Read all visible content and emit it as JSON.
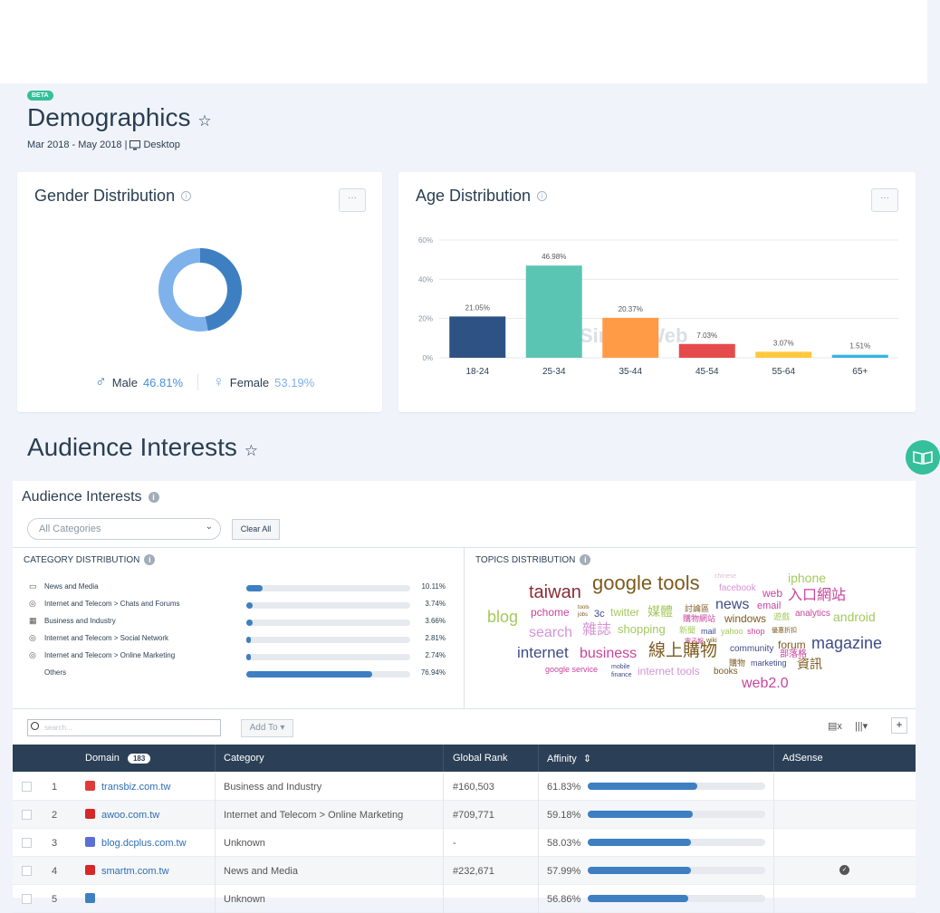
{
  "header": {
    "badge": "BETA",
    "title": "Demographics",
    "date_range": "Mar 2018 - May 2018 |",
    "device": "Desktop"
  },
  "gender": {
    "title": "Gender Distribution",
    "more": "···",
    "male_label": "Male",
    "male_value": "46.81%",
    "female_label": "Female",
    "female_value": "53.19%",
    "colors": {
      "male": "#3e7fc1",
      "female": "#7fb2ea"
    }
  },
  "age": {
    "title": "Age Distribution",
    "more": "···",
    "watermark": "SimilarWeb"
  },
  "chart_data": {
    "type": "bar",
    "categories": [
      "18-24",
      "25-34",
      "35-44",
      "45-54",
      "55-64",
      "65+"
    ],
    "values": [
      21.05,
      46.98,
      20.37,
      7.03,
      3.07,
      1.51
    ],
    "value_labels": [
      "21.05%",
      "46.98%",
      "20.37%",
      "7.03%",
      "3.07%",
      "1.51%"
    ],
    "colors": [
      "#2f5285",
      "#5bc5b4",
      "#ff9b47",
      "#e64b4b",
      "#ffc83d",
      "#35b5e5"
    ],
    "yticks": [
      "0%",
      "20%",
      "40%",
      "60%"
    ],
    "ylim": [
      0,
      60
    ],
    "title": "",
    "xlabel": "",
    "ylabel": ""
  },
  "interests": {
    "section_title": "Audience Interests",
    "panel_title": "Audience Interests",
    "category_select": "All Categories",
    "clear_all": "Clear All",
    "category_dist_title": "CATEGORY DISTRIBUTION",
    "topics_dist_title": "TOPICS DISTRIBUTION",
    "categories": [
      {
        "icon": "news-icon",
        "glyph": "▭",
        "label": "News and Media",
        "value": "10.11%",
        "pct": 10.11
      },
      {
        "icon": "compass-icon",
        "glyph": "◎",
        "label": "Internet and Telecom > Chats and Forums",
        "value": "3.74%",
        "pct": 3.74
      },
      {
        "icon": "building-icon",
        "glyph": "▦",
        "label": "Business and Industry",
        "value": "3.66%",
        "pct": 3.66
      },
      {
        "icon": "compass-icon",
        "glyph": "◎",
        "label": "Internet and Telecom > Social Network",
        "value": "2.81%",
        "pct": 2.81
      },
      {
        "icon": "compass-icon",
        "glyph": "◎",
        "label": "Internet and Telecom > Online Marketing",
        "value": "2.74%",
        "pct": 2.74
      },
      {
        "icon": "",
        "glyph": "",
        "label": "Others",
        "value": "76.94%",
        "pct": 76.94
      }
    ],
    "topics": [
      {
        "t": "taiwan",
        "c": "#8b2a35"
      },
      {
        "t": "google tools",
        "c": "#7d5a1e"
      },
      {
        "t": "chinese",
        "c": "#e0c0d8"
      },
      {
        "t": "facebook",
        "c": "#d493d6"
      },
      {
        "t": "iphone",
        "c": "#a3c95c"
      },
      {
        "t": "web",
        "c": "#c9449c"
      },
      {
        "t": "入口網站",
        "c": "#c9449c"
      },
      {
        "t": "news",
        "c": "#3e4b87"
      },
      {
        "t": "email",
        "c": "#c9449c"
      },
      {
        "t": "blog",
        "c": "#a3c95c"
      },
      {
        "t": "pchome",
        "c": "#c9449c"
      },
      {
        "t": "tools",
        "c": "#7d5a1e"
      },
      {
        "t": "jobs",
        "c": "#7d5a1e"
      },
      {
        "t": "3c",
        "c": "#3e4b87"
      },
      {
        "t": "twitter",
        "c": "#a3c95c"
      },
      {
        "t": "媒體",
        "c": "#a3c95c"
      },
      {
        "t": "討論區",
        "c": "#7d5a1e"
      },
      {
        "t": "購物網站",
        "c": "#c9449c"
      },
      {
        "t": "windows",
        "c": "#7d5a1e"
      },
      {
        "t": "遊戲",
        "c": "#a3c95c"
      },
      {
        "t": "analytics",
        "c": "#c9449c"
      },
      {
        "t": "android",
        "c": "#a3c95c"
      },
      {
        "t": "search",
        "c": "#d493d6"
      },
      {
        "t": "雜誌",
        "c": "#d493d6"
      },
      {
        "t": "shopping",
        "c": "#a3c95c"
      },
      {
        "t": "新聞",
        "c": "#a3c95c"
      },
      {
        "t": "mail",
        "c": "#3e4b87"
      },
      {
        "t": "yahoo",
        "c": "#a3c95c"
      },
      {
        "t": "shop",
        "c": "#c9449c"
      },
      {
        "t": "優惠折扣",
        "c": "#7d5a1e"
      },
      {
        "t": "電子報",
        "c": "#c9449c"
      },
      {
        "t": "wiki",
        "c": "#7d5a1e"
      },
      {
        "t": "forum",
        "c": "#7d5a1e"
      },
      {
        "t": "magazine",
        "c": "#3e4b87"
      },
      {
        "t": "internet",
        "c": "#3e4b87"
      },
      {
        "t": "business",
        "c": "#c9449c"
      },
      {
        "t": "線上購物",
        "c": "#7d5a1e"
      },
      {
        "t": "community",
        "c": "#3e4b87"
      },
      {
        "t": "部落格",
        "c": "#c9449c"
      },
      {
        "t": "購物",
        "c": "#7d5a1e"
      },
      {
        "t": "marketing",
        "c": "#3e4b87"
      },
      {
        "t": "資訊",
        "c": "#7d5a1e"
      },
      {
        "t": "google service",
        "c": "#c9449c"
      },
      {
        "t": "mobile",
        "c": "#3e4b87"
      },
      {
        "t": "finance",
        "c": "#3e4b87"
      },
      {
        "t": "internet tools",
        "c": "#d493d6"
      },
      {
        "t": "books",
        "c": "#7d5a1e"
      },
      {
        "t": "web2.0",
        "c": "#c9449c"
      }
    ]
  },
  "table": {
    "search_placeholder": "search...",
    "add_to": "Add To ▾",
    "excel_icon": "excel-icon",
    "columns_icon": "columns-icon",
    "plus": "+",
    "headers": {
      "domain": "Domain",
      "count": "183",
      "category": "Category",
      "global_rank": "Global Rank",
      "affinity": "Affinity",
      "adsense": "AdSense"
    },
    "rows": [
      {
        "n": "1",
        "domain": "transbiz.com.tw",
        "category": "Business and Industry",
        "rank": "#160,503",
        "affinity": "61.83%",
        "aff": 61.83,
        "adsense": false,
        "fav": "#e03a3a"
      },
      {
        "n": "2",
        "domain": "awoo.com.tw",
        "category": "Internet and Telecom > Online Marketing",
        "rank": "#709,771",
        "affinity": "59.18%",
        "aff": 59.18,
        "adsense": false,
        "fav": "#d62828"
      },
      {
        "n": "3",
        "domain": "blog.dcplus.com.tw",
        "category": "Unknown",
        "rank": "-",
        "affinity": "58.03%",
        "aff": 58.03,
        "adsense": false,
        "fav": "#5b6fd6"
      },
      {
        "n": "4",
        "domain": "smartm.com.tw",
        "category": "News and Media",
        "rank": "#232,671",
        "affinity": "57.99%",
        "aff": 57.99,
        "adsense": true,
        "fav": "#d62828"
      },
      {
        "n": "5",
        "domain": "",
        "category": "Unknown",
        "rank": "",
        "affinity": "56.86%",
        "aff": 56.86,
        "adsense": false,
        "fav": "#3e7fc1"
      }
    ]
  }
}
